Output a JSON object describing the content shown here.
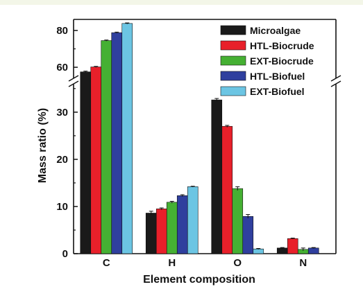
{
  "chart_data": {
    "type": "bar",
    "xlabel": "Element composition",
    "ylabel": "Mass ratio (%)",
    "categories": [
      "C",
      "H",
      "O",
      "N"
    ],
    "axis_break": {
      "lower_range": [
        0,
        36
      ],
      "upper_range": [
        54,
        86
      ]
    },
    "yticks_lower": [
      0,
      10,
      20,
      30
    ],
    "yticks_upper": [
      60,
      80
    ],
    "legend_position": "top-right",
    "series": [
      {
        "name": "Microalgae",
        "color": "#1a1a1a",
        "values": [
          57.5,
          8.6,
          32.6,
          1.2
        ],
        "errors": [
          0.4,
          0.4,
          0.3,
          0.1
        ]
      },
      {
        "name": "HTL-Biocrude",
        "color": "#e8202a",
        "values": [
          60.2,
          9.5,
          27.0,
          3.2
        ],
        "errors": [
          0.3,
          0.2,
          0.2,
          0.1
        ]
      },
      {
        "name": "EXT-Biocrude",
        "color": "#45b033",
        "values": [
          74.5,
          10.9,
          13.8,
          0.9
        ],
        "errors": [
          0.3,
          0.2,
          0.4,
          0.3
        ]
      },
      {
        "name": "HTL-Biofuel",
        "color": "#2f3f9e",
        "values": [
          78.8,
          12.3,
          7.9,
          1.2
        ],
        "errors": [
          0.3,
          0.2,
          0.4,
          0.1
        ]
      },
      {
        "name": "EXT-Biofuel",
        "color": "#6cc5e3",
        "values": [
          83.8,
          14.2,
          1.0,
          0.0
        ],
        "errors": [
          0.3,
          0.1,
          0.1,
          0.0
        ]
      }
    ]
  }
}
